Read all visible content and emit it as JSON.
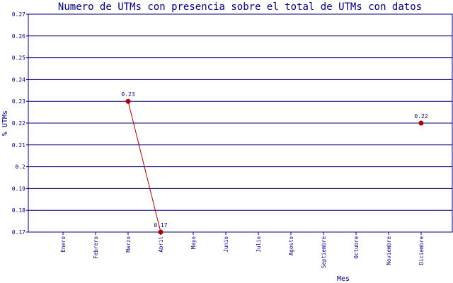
{
  "chart_data": {
    "type": "line",
    "title": "Numero de UTMs con presencia sobre el total de UTMs con datos",
    "xlabel": "Mes",
    "ylabel": "% UTMs",
    "categories": [
      "Enero",
      "Febrero",
      "Marzo",
      "Abril",
      "Mayo",
      "Junio",
      "Julio",
      "Agosto",
      "Septiembre",
      "Octubre",
      "Noviembre",
      "Diciembre"
    ],
    "yticks": [
      "0.17",
      "0.18",
      "0.19",
      "0.2",
      "0.21",
      "0.22",
      "0.23",
      "0.24",
      "0.25",
      "0.26",
      "0.27"
    ],
    "ylim": [
      0.17,
      0.27
    ],
    "grid": true,
    "series": [
      {
        "values": [
          null,
          null,
          0.23,
          0.17,
          null,
          null,
          null,
          null,
          null,
          null,
          null,
          0.22
        ],
        "labels": [
          null,
          null,
          "0.23",
          "0.17",
          null,
          null,
          null,
          null,
          null,
          null,
          null,
          "0.22"
        ],
        "color": "#aa0000"
      }
    ],
    "grid_color": "#000080",
    "text_color": "#00007f"
  }
}
